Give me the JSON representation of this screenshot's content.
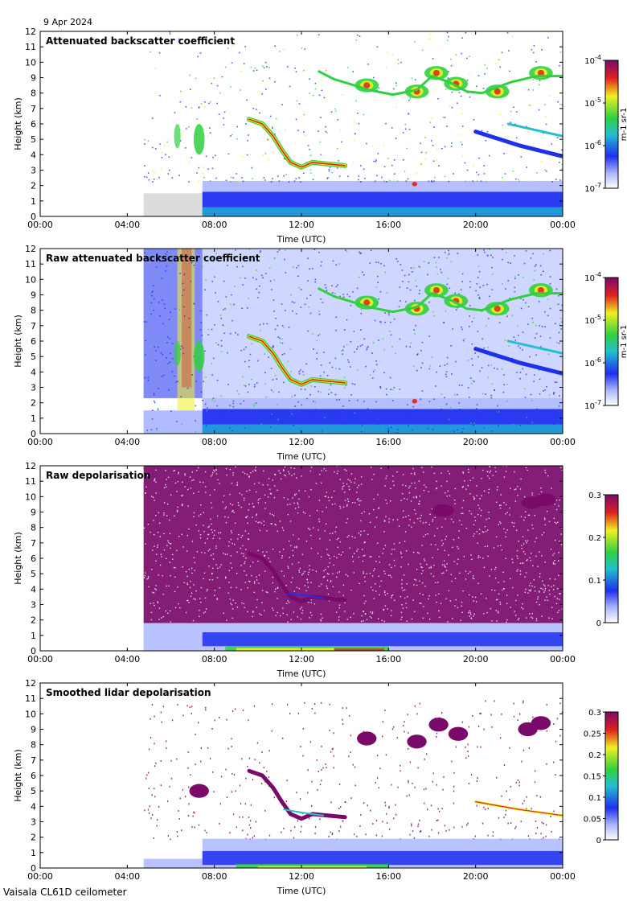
{
  "date": "9 Apr 2024",
  "footer": "Vaisala CL61D ceilometer",
  "colors": {
    "blue": "#1f2ff0",
    "light_blue": "#a8b4ff",
    "cyan": "#20c0d0",
    "green": "#30d040",
    "yellow": "#f0f020",
    "red": "#e02020",
    "purple": "#7a0a6a",
    "grey": "#d8d8d8"
  },
  "chart_data": [
    {
      "type": "heatmap",
      "title": "Attenuated backscatter coefficient",
      "xlabel": "Time (UTC)",
      "ylabel": "Height (km)",
      "x_ticks": [
        "00:00",
        "04:00",
        "08:00",
        "12:00",
        "16:00",
        "20:00",
        "00:00"
      ],
      "y_ticks": [
        "0",
        "1",
        "2",
        "3",
        "4",
        "5",
        "6",
        "7",
        "8",
        "9",
        "10",
        "11",
        "12"
      ],
      "ylim": [
        0,
        12
      ],
      "xlim_hours": [
        0,
        24
      ],
      "data_start_hour": 4.75,
      "colorbar": {
        "scale": "log",
        "unit": "m-1 sr-1",
        "ticks": [
          "10-7",
          "10-6",
          "10-5",
          "10-4"
        ],
        "range": [
          1e-07,
          0.0001
        ]
      }
    },
    {
      "type": "heatmap",
      "title": "Raw attenuated backscatter coefficient",
      "xlabel": "Time (UTC)",
      "ylabel": "Height (km)",
      "x_ticks": [
        "00:00",
        "04:00",
        "08:00",
        "12:00",
        "16:00",
        "20:00",
        "00:00"
      ],
      "y_ticks": [
        "0",
        "1",
        "2",
        "3",
        "4",
        "5",
        "6",
        "7",
        "8",
        "9",
        "10",
        "11",
        "12"
      ],
      "ylim": [
        0,
        12
      ],
      "xlim_hours": [
        0,
        24
      ],
      "data_start_hour": 4.75,
      "colorbar": {
        "scale": "log",
        "unit": "m-1 sr-1",
        "ticks": [
          "10-7",
          "10-6",
          "10-5",
          "10-4"
        ],
        "range": [
          1e-07,
          0.0001
        ]
      }
    },
    {
      "type": "heatmap",
      "title": "Raw depolarisation",
      "xlabel": "Time (UTC)",
      "ylabel": "Height (km)",
      "x_ticks": [
        "00:00",
        "04:00",
        "08:00",
        "12:00",
        "16:00",
        "20:00",
        "00:00"
      ],
      "y_ticks": [
        "0",
        "1",
        "2",
        "3",
        "4",
        "5",
        "6",
        "7",
        "8",
        "9",
        "10",
        "11",
        "12"
      ],
      "ylim": [
        0,
        12
      ],
      "xlim_hours": [
        0,
        24
      ],
      "data_start_hour": 4.75,
      "colorbar": {
        "scale": "linear",
        "unit": "",
        "ticks": [
          "0",
          "0.1",
          "0.2",
          "0.3"
        ],
        "range": [
          0,
          0.3
        ]
      }
    },
    {
      "type": "heatmap",
      "title": "Smoothed lidar depolarisation",
      "xlabel": "Time (UTC)",
      "ylabel": "Height (km)",
      "x_ticks": [
        "00:00",
        "04:00",
        "08:00",
        "12:00",
        "16:00",
        "20:00",
        "00:00"
      ],
      "y_ticks": [
        "0",
        "1",
        "2",
        "3",
        "4",
        "5",
        "6",
        "7",
        "8",
        "9",
        "10",
        "11",
        "12"
      ],
      "ylim": [
        0,
        12
      ],
      "xlim_hours": [
        0,
        24
      ],
      "data_start_hour": 4.75,
      "colorbar": {
        "scale": "linear",
        "unit": "",
        "ticks": [
          "0",
          "0.05",
          "0.1",
          "0.15",
          "0.2",
          "0.25",
          "0.3"
        ],
        "range": [
          0,
          0.3
        ]
      }
    }
  ]
}
